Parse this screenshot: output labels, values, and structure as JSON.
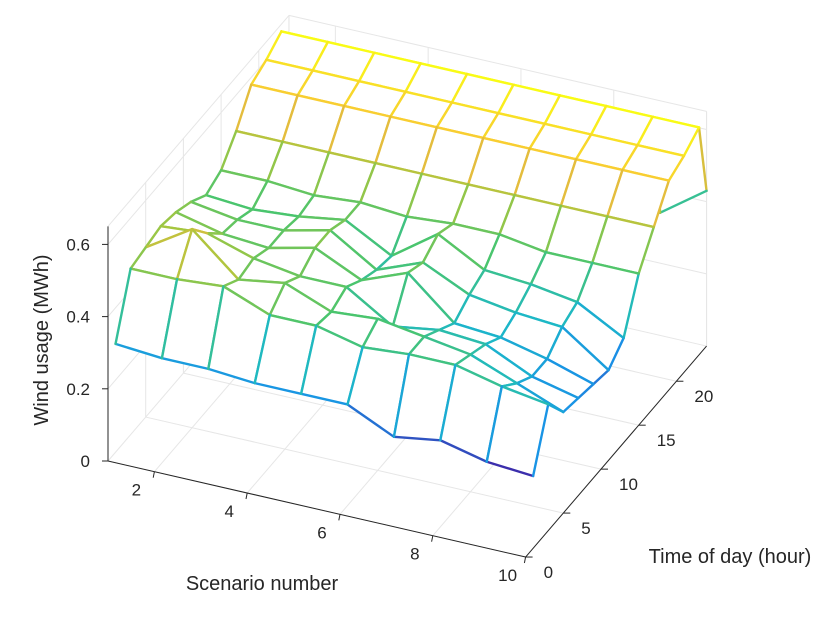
{
  "chart_data": {
    "type": "surface-mesh",
    "title": "",
    "xlabel": "Scenario number",
    "ylabel": "Time of day (hour)",
    "zlabel": "Wind usage (MWh)",
    "x_ticks": [
      "2",
      "4",
      "6",
      "8",
      "10"
    ],
    "y_ticks": [
      "0",
      "5",
      "10",
      "15",
      "20"
    ],
    "z_ticks": [
      "0",
      "0.2",
      "0.4",
      "0.6"
    ],
    "xlim": [
      1,
      10
    ],
    "ylim": [
      0,
      24
    ],
    "zlim": [
      0,
      0.65
    ],
    "grid": true,
    "colormap": "parula",
    "colormap_stops": [
      "#3e26a8",
      "#1992e6",
      "#1cb8c8",
      "#4ac56e",
      "#a8c63e",
      "#f8ba3d",
      "#f9fb15"
    ],
    "scenarios": [
      1,
      2,
      3,
      4,
      5,
      6,
      7,
      8,
      9,
      10
    ],
    "hours": [
      1,
      3,
      5,
      7,
      9,
      11,
      13,
      15,
      17,
      19,
      21,
      23,
      24
    ],
    "values": [
      [
        0.3,
        0.46,
        0.47,
        0.48,
        0.47,
        0.45,
        0.42,
        0.44,
        0.5,
        0.58,
        0.6,
        0.63,
        0.43
      ],
      [
        0.29,
        0.46,
        0.55,
        0.49,
        0.44,
        0.43,
        0.41,
        0.44,
        0.5,
        0.58,
        0.6,
        0.63,
        0.28
      ],
      [
        0.29,
        0.47,
        0.44,
        0.45,
        0.43,
        0.43,
        0.42,
        0.43,
        0.5,
        0.58,
        0.6,
        0.63,
        0.34
      ],
      [
        0.28,
        0.42,
        0.46,
        0.43,
        0.46,
        0.46,
        0.44,
        0.44,
        0.5,
        0.58,
        0.6,
        0.63,
        0.34
      ],
      [
        0.28,
        0.42,
        0.41,
        0.43,
        0.4,
        0.38,
        0.37,
        0.43,
        0.5,
        0.58,
        0.6,
        0.63,
        0.34
      ],
      [
        0.28,
        0.39,
        0.42,
        0.35,
        0.45,
        0.43,
        0.46,
        0.44,
        0.5,
        0.58,
        0.6,
        0.63,
        0.34
      ],
      [
        0.22,
        0.4,
        0.4,
        0.37,
        0.34,
        0.37,
        0.39,
        0.44,
        0.5,
        0.58,
        0.6,
        0.63,
        0.34
      ],
      [
        0.24,
        0.4,
        0.38,
        0.36,
        0.33,
        0.35,
        0.38,
        0.42,
        0.5,
        0.58,
        0.6,
        0.63,
        0.33
      ],
      [
        0.21,
        0.37,
        0.33,
        0.3,
        0.3,
        0.34,
        0.36,
        0.42,
        0.5,
        0.58,
        0.6,
        0.63,
        0.34
      ],
      [
        0.2,
        0.35,
        0.28,
        0.27,
        0.26,
        0.25,
        0.29,
        0.42,
        0.5,
        0.58,
        0.6,
        0.63,
        0.43
      ]
    ]
  }
}
